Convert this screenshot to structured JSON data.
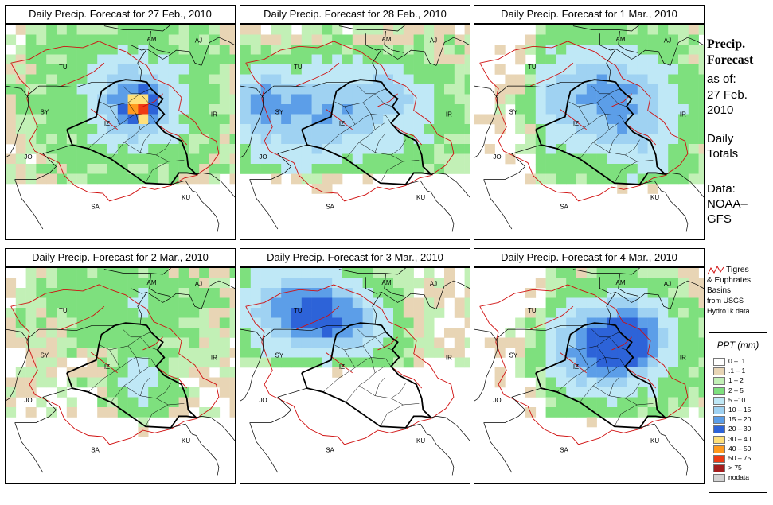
{
  "colors": {
    "bin0": "#ffffff",
    "bin1": "#e8d5b5",
    "bin2": "#c2f0b6",
    "bin3": "#7ee07e",
    "bin4": "#bfe8f6",
    "bin5": "#9fd2f2",
    "bin6": "#5c9ee8",
    "bin7": "#2d63d8",
    "bin8": "#ffe07a",
    "bin9": "#ff9a1f",
    "bin10": "#ee3b14",
    "bin11": "#a41d1d",
    "nodata": "#d3d3d3",
    "border": "#000000",
    "basin": "#d01010"
  },
  "panels": [
    {
      "title": "Daily Precip. Forecast for  27 Feb., 2010",
      "pattern": "feb27"
    },
    {
      "title": "Daily Precip. Forecast for  28 Feb., 2010",
      "pattern": "feb28"
    },
    {
      "title": "Daily Precip. Forecast for  1 Mar., 2010",
      "pattern": "mar1"
    },
    {
      "title": "Daily Precip. Forecast for  2 Mar., 2010",
      "pattern": "mar2"
    },
    {
      "title": "Daily Precip. Forecast for  3 Mar., 2010",
      "pattern": "mar3"
    },
    {
      "title": "Daily Precip. Forecast for  4 Mar., 2010",
      "pattern": "mar4"
    }
  ],
  "country_labels": [
    {
      "code": "AM",
      "lon": 44.8,
      "lat": 40.3
    },
    {
      "code": "AJ",
      "lon": 48.4,
      "lat": 40.2
    },
    {
      "code": "TU",
      "lon": 38.2,
      "lat": 38.1
    },
    {
      "code": "SY",
      "lon": 36.8,
      "lat": 34.6
    },
    {
      "code": "IR",
      "lon": 49.6,
      "lat": 34.4
    },
    {
      "code": "JO",
      "lon": 35.6,
      "lat": 31.1
    },
    {
      "code": "SA",
      "lon": 40.6,
      "lat": 27.2
    },
    {
      "code": "KU",
      "lon": 47.4,
      "lat": 27.9
    },
    {
      "code": "IZ",
      "lon": 41.6,
      "lat": 33.7
    }
  ],
  "sidebar": {
    "title_line1": "Precip.",
    "title_line2": "Forecast",
    "as_of": "as of:",
    "date_line1": "27 Feb.",
    "date_line2": "2010",
    "totals_line1": "Daily",
    "totals_line2": "Totals",
    "data_line1": "Data:",
    "data_line2": "NOAA–",
    "data_line3": "GFS",
    "basin_line1": "Tigres",
    "basin_line2": "& Euphrates",
    "basin_line3": "Basins",
    "basin_line4": "from USGS",
    "basin_line5": "Hydro1k data"
  },
  "legend": {
    "title": "PPT (mm)",
    "entries": [
      {
        "label": "0 – .1",
        "color": "#ffffff"
      },
      {
        "label": ".1 – 1",
        "color": "#e8d5b5"
      },
      {
        "label": "1 – 2",
        "color": "#c2f0b6"
      },
      {
        "label": "2 – 5",
        "color": "#7ee07e"
      },
      {
        "label": "5 –10",
        "color": "#bfe8f6"
      },
      {
        "label": "10 – 15",
        "color": "#9fd2f2"
      },
      {
        "label": "15 – 20",
        "color": "#5c9ee8"
      },
      {
        "label": "20 – 30",
        "color": "#2d63d8"
      },
      {
        "label": "30 – 40",
        "color": "#ffe07a"
      },
      {
        "label": "40 – 50",
        "color": "#ff9a1f"
      },
      {
        "label": "50 – 75",
        "color": "#ee3b14"
      },
      {
        "label": "> 75",
        "color": "#a41d1d"
      },
      {
        "label": "nodata",
        "color": "#d3d3d3"
      }
    ]
  }
}
